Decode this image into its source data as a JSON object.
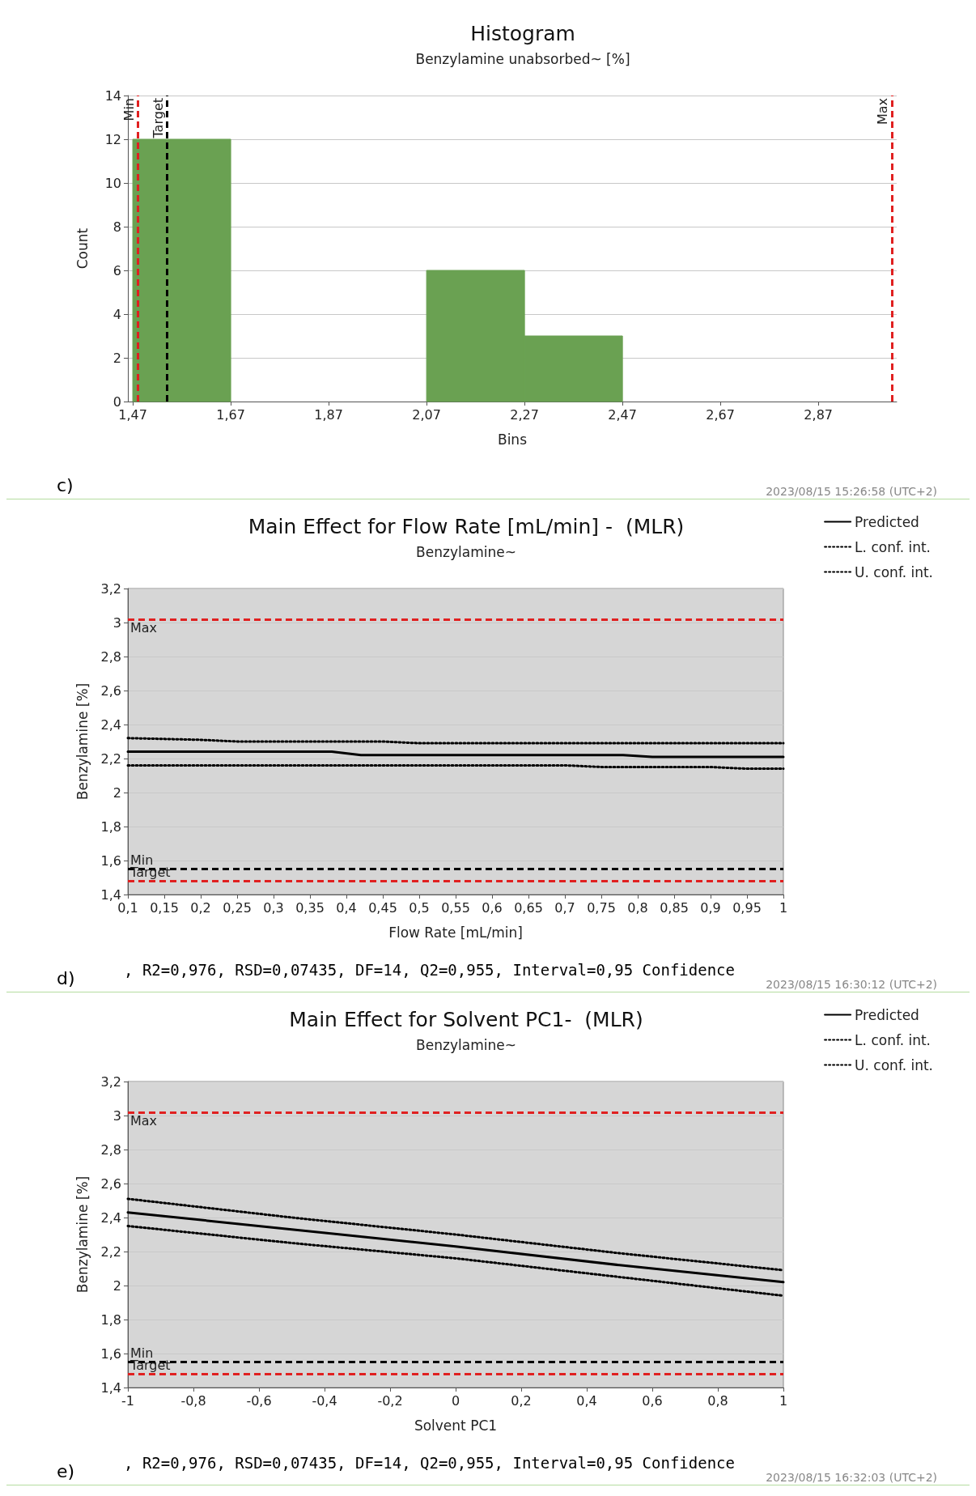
{
  "chart_data": [
    {
      "type": "histogram",
      "title": "Histogram",
      "subtitle": "Benzylamine unabsorbed~ [%]",
      "xlabel": "Bins",
      "ylabel": "Count",
      "bins": [
        1.47,
        1.67,
        1.87,
        2.07,
        2.27,
        2.47
      ],
      "values": [
        12,
        0,
        0,
        6,
        3
      ],
      "color": "#6aa152",
      "xlim": [
        1.46,
        3.03
      ],
      "xticks": [
        {
          "value": 1.47,
          "label": "1,47"
        },
        {
          "value": 1.67,
          "label": "1,67"
        },
        {
          "value": 1.87,
          "label": "1,87"
        },
        {
          "value": 2.07,
          "label": "2,07"
        },
        {
          "value": 2.27,
          "label": "2,27"
        },
        {
          "value": 2.47,
          "label": "2,47"
        },
        {
          "value": 2.67,
          "label": "2,67"
        },
        {
          "value": 2.87,
          "label": "2,87"
        }
      ],
      "ylim": [
        0,
        14
      ],
      "yticks": [
        0,
        2,
        4,
        6,
        8,
        10,
        12,
        14
      ],
      "grid": "y",
      "legend": false,
      "ref_lines": [
        {
          "axis": "x",
          "value": 1.48,
          "label": "Min",
          "color": "#e02020",
          "line_style": "dashed"
        },
        {
          "axis": "x",
          "value": 1.54,
          "label": "Target",
          "color": "#000000",
          "line_style": "dashed"
        },
        {
          "axis": "x",
          "value": 3.02,
          "label": "Max",
          "color": "#e02020",
          "line_style": "dashed"
        }
      ],
      "annotations": [
        "c)",
        "2023/08/15 15:26:58 (UTC+2)"
      ]
    },
    {
      "type": "line",
      "title": "Main Effect for Flow Rate [mL/min] -  (MLR)",
      "subtitle": "Benzylamine~",
      "xlabel": "Flow Rate [mL/min]",
      "ylabel": "Benzylamine [%]",
      "series": [
        {
          "name": "Predicted",
          "color": "#000000",
          "line_style": "solid",
          "x": [
            0.1,
            0.38,
            0.42,
            0.78,
            0.82,
            1
          ],
          "values": [
            2.24,
            2.24,
            2.22,
            2.22,
            2.21,
            2.21
          ]
        },
        {
          "name": "L. conf. int.",
          "color": "#000000",
          "line_style": "dotted",
          "x": [
            0.1,
            0.7,
            0.75,
            0.9,
            0.95,
            1
          ],
          "values": [
            2.16,
            2.16,
            2.15,
            2.15,
            2.14,
            2.14
          ]
        },
        {
          "name": "U. conf. int.",
          "color": "#000000",
          "line_style": "dotted",
          "x": [
            0.1,
            0.2,
            0.25,
            0.45,
            0.5,
            1
          ],
          "values": [
            2.32,
            2.31,
            2.3,
            2.3,
            2.29,
            2.29
          ]
        }
      ],
      "xlim": [
        0.1,
        1
      ],
      "xticks": [
        {
          "value": 0.1,
          "label": "0,1"
        },
        {
          "value": 0.15,
          "label": "0,15"
        },
        {
          "value": 0.2,
          "label": "0,2"
        },
        {
          "value": 0.25,
          "label": "0,25"
        },
        {
          "value": 0.3,
          "label": "0,3"
        },
        {
          "value": 0.35,
          "label": "0,35"
        },
        {
          "value": 0.4,
          "label": "0,4"
        },
        {
          "value": 0.45,
          "label": "0,45"
        },
        {
          "value": 0.5,
          "label": "0,5"
        },
        {
          "value": 0.55,
          "label": "0,55"
        },
        {
          "value": 0.6,
          "label": "0,6"
        },
        {
          "value": 0.65,
          "label": "0,65"
        },
        {
          "value": 0.7,
          "label": "0,7"
        },
        {
          "value": 0.75,
          "label": "0,75"
        },
        {
          "value": 0.8,
          "label": "0,8"
        },
        {
          "value": 0.85,
          "label": "0,85"
        },
        {
          "value": 0.9,
          "label": "0,9"
        },
        {
          "value": 0.95,
          "label": "0,95"
        },
        1
      ],
      "ylim": [
        1.4,
        3.2
      ],
      "yticks": [
        {
          "value": 1.4,
          "label": "1,4"
        },
        {
          "value": 1.6,
          "label": "1,6"
        },
        {
          "value": 1.8,
          "label": "1,8"
        },
        2,
        {
          "value": 2.2,
          "label": "2,2"
        },
        {
          "value": 2.4,
          "label": "2,4"
        },
        {
          "value": 2.6,
          "label": "2,6"
        },
        {
          "value": 2.8,
          "label": "2,8"
        },
        3,
        {
          "value": 3.2,
          "label": "3,2"
        }
      ],
      "grid": "y",
      "legend": "top right",
      "marker": "none",
      "ref_lines": [
        {
          "axis": "y",
          "value": 3.02,
          "label": "Max",
          "color": "#e02020",
          "line_style": "dashed"
        },
        {
          "axis": "y",
          "value": 1.55,
          "label": "Min",
          "color": "#000000",
          "line_style": "dashed"
        },
        {
          "axis": "y",
          "value": 1.48,
          "label": "Target",
          "color": "#e02020",
          "line_style": "dashed"
        }
      ],
      "annotations": [
        "d)",
        ", R2=0,976, RSD=0,07435, DF=14, Q2=0,955, Interval=0,95 Confidence",
        "2023/08/15 16:30:12 (UTC+2)"
      ]
    },
    {
      "type": "line",
      "title": "Main Effect for Solvent PC1-  (MLR)",
      "subtitle": "Benzylamine~",
      "xlabel": "Solvent PC1",
      "ylabel": "Benzylamine [%]",
      "series": [
        {
          "name": "Predicted",
          "color": "#000000",
          "line_style": "solid",
          "x": [
            -1,
            -0.5,
            0,
            0.5,
            1
          ],
          "values": [
            2.43,
            2.33,
            2.23,
            2.12,
            2.02
          ]
        },
        {
          "name": "L. conf. int.",
          "color": "#000000",
          "line_style": "dotted",
          "x": [
            -1,
            -0.5,
            0,
            0.5,
            1
          ],
          "values": [
            2.35,
            2.25,
            2.16,
            2.05,
            1.94
          ]
        },
        {
          "name": "U. conf. int.",
          "color": "#000000",
          "line_style": "dotted",
          "x": [
            -1,
            -0.5,
            0,
            0.5,
            1
          ],
          "values": [
            2.51,
            2.4,
            2.3,
            2.19,
            2.09
          ]
        }
      ],
      "xlim": [
        -1,
        1
      ],
      "xticks": [
        -1,
        {
          "value": -0.8,
          "label": "-0,8"
        },
        {
          "value": -0.6,
          "label": "-0,6"
        },
        {
          "value": -0.4,
          "label": "-0,4"
        },
        {
          "value": -0.2,
          "label": "-0,2"
        },
        0,
        {
          "value": 0.2,
          "label": "0,2"
        },
        {
          "value": 0.4,
          "label": "0,4"
        },
        {
          "value": 0.6,
          "label": "0,6"
        },
        {
          "value": 0.8,
          "label": "0,8"
        },
        1
      ],
      "ylim": [
        1.4,
        3.2
      ],
      "yticks": [
        {
          "value": 1.4,
          "label": "1,4"
        },
        {
          "value": 1.6,
          "label": "1,6"
        },
        {
          "value": 1.8,
          "label": "1,8"
        },
        2,
        {
          "value": 2.2,
          "label": "2,2"
        },
        {
          "value": 2.4,
          "label": "2,4"
        },
        {
          "value": 2.6,
          "label": "2,6"
        },
        {
          "value": 2.8,
          "label": "2,8"
        },
        3,
        {
          "value": 3.2,
          "label": "3,2"
        }
      ],
      "grid": "y",
      "legend": "top right",
      "marker": "none",
      "ref_lines": [
        {
          "axis": "y",
          "value": 3.02,
          "label": "Max",
          "color": "#e02020",
          "line_style": "dashed"
        },
        {
          "axis": "y",
          "value": 1.55,
          "label": "Min",
          "color": "#000000",
          "line_style": "dashed"
        },
        {
          "axis": "y",
          "value": 1.48,
          "label": "Target",
          "color": "#e02020",
          "line_style": "dashed"
        }
      ],
      "annotations": [
        "e)",
        ", R2=0,976, RSD=0,07435, DF=14, Q2=0,955, Interval=0,95 Confidence",
        "2023/08/15 16:32:03 (UTC+2)"
      ]
    }
  ]
}
